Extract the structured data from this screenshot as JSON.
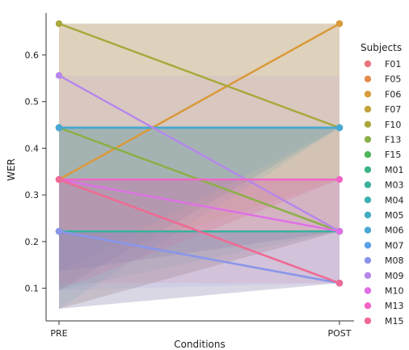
{
  "chart_data": {
    "type": "line",
    "xlabel": "Conditions",
    "ylabel": "WER",
    "categories": [
      "PRE",
      "POST"
    ],
    "ylim": [
      0.03,
      0.69
    ],
    "yticks": [
      0.1,
      0.2,
      0.3,
      0.4,
      0.5,
      0.6
    ],
    "grid": false,
    "legend": {
      "title": "Subjects",
      "position": "right"
    },
    "confidence_band": {
      "lower": [
        0.056,
        0.111
      ],
      "upper": [
        0.667,
        0.667
      ]
    },
    "series": [
      {
        "name": "F01",
        "values": [
          0.333,
          0.111
        ],
        "color": "#e8777f"
      },
      {
        "name": "F05",
        "values": [
          0.333,
          0.667
        ],
        "color": "#e48b4a"
      },
      {
        "name": "F06",
        "values": [
          0.333,
          0.667
        ],
        "color": "#d99b3c"
      },
      {
        "name": "F07",
        "values": [
          0.444,
          0.222
        ],
        "color": "#c3a23b"
      },
      {
        "name": "F10",
        "values": [
          0.667,
          0.444
        ],
        "color": "#a8a83c"
      },
      {
        "name": "F13",
        "values": [
          0.444,
          0.222
        ],
        "color": "#89b04a"
      },
      {
        "name": "F15",
        "values": [
          0.222,
          0.222
        ],
        "color": "#4fb45a"
      },
      {
        "name": "M01",
        "values": [
          0.222,
          0.222
        ],
        "color": "#3cb385"
      },
      {
        "name": "M03",
        "values": [
          0.222,
          0.222
        ],
        "color": "#39b19e"
      },
      {
        "name": "M04",
        "values": [
          0.444,
          0.444
        ],
        "color": "#3db0b3"
      },
      {
        "name": "M05",
        "values": [
          0.444,
          0.444
        ],
        "color": "#41acc4"
      },
      {
        "name": "M06",
        "values": [
          0.444,
          0.444
        ],
        "color": "#48a8d4"
      },
      {
        "name": "M07",
        "values": [
          0.222,
          0.111
        ],
        "color": "#5aa0e6"
      },
      {
        "name": "M08",
        "values": [
          0.222,
          0.111
        ],
        "color": "#8c95ea"
      },
      {
        "name": "M09",
        "values": [
          0.556,
          0.222
        ],
        "color": "#b686ea"
      },
      {
        "name": "M10",
        "values": [
          0.333,
          0.222
        ],
        "color": "#df6fe6"
      },
      {
        "name": "M13",
        "values": [
          0.333,
          0.333
        ],
        "color": "#f165c6"
      },
      {
        "name": "M15",
        "values": [
          0.333,
          0.111
        ],
        "color": "#ef6a95"
      }
    ]
  }
}
